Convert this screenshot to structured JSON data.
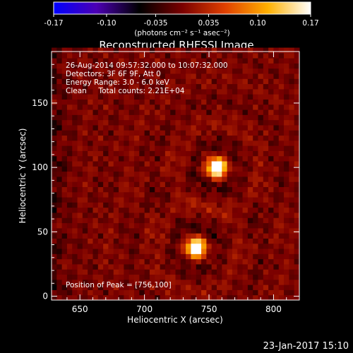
{
  "colorbar": {
    "tick_labels": [
      "-0.17",
      "-0.10",
      "-0.035",
      "0.035",
      "0.10",
      "0.17"
    ],
    "tick_values": [
      -0.17,
      -0.1,
      -0.035,
      0.035,
      0.1,
      0.17
    ],
    "range": [
      -0.17,
      0.17
    ],
    "unit_label": "(photons cm⁻² s⁻¹ asec⁻²)",
    "colormap": [
      "#0000ff",
      "#4c00b4",
      "#000000",
      "#7a0000",
      "#e04000",
      "#ffb000",
      "#ffffff"
    ]
  },
  "chart_data": {
    "type": "heatmap",
    "title": "Reconstructed RHESSI Image",
    "xlabel": "Heliocentric X (arcsec)",
    "ylabel": "Heliocentric Y (arcsec)",
    "xlim": [
      628,
      820
    ],
    "ylim": [
      -3,
      190
    ],
    "xticks": [
      "650",
      "700",
      "750",
      "800"
    ],
    "xtick_values": [
      650,
      700,
      750,
      800
    ],
    "yticks": [
      "0",
      "50",
      "100",
      "150"
    ],
    "ytick_values": [
      0,
      50,
      100,
      150
    ],
    "info_lines": [
      "26-Aug-2014 09:57:32.000 to 10:07:32.000",
      "Detectors: 3F 6F 9F, Att 0",
      "Energy Range: 3.0 - 6.0 keV",
      "Clean     Total counts: 2.21E+04"
    ],
    "peak_label": "Position of Peak = [756,100]",
    "sources": [
      {
        "x": 756,
        "y": 100,
        "peak": 0.17
      },
      {
        "x": 740,
        "y": 38,
        "peak": 0.165
      }
    ]
  },
  "footer": {
    "timestamp": "23-Jan-2017 15:10"
  }
}
